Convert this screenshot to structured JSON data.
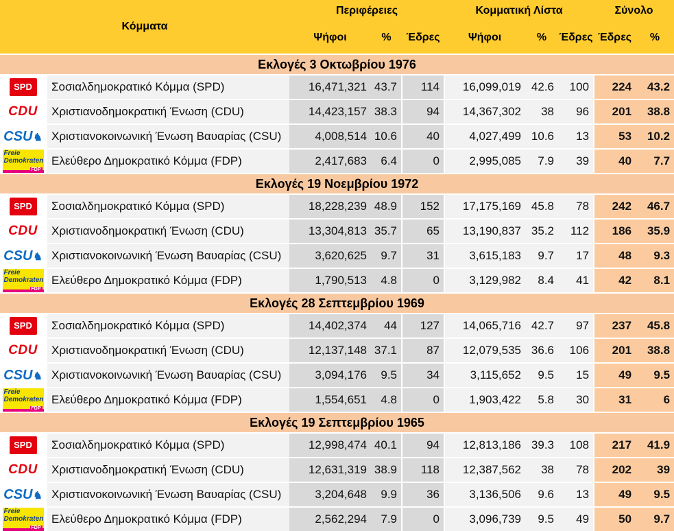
{
  "header": {
    "parties": "Κόμματα",
    "regions": "Περιφέρειες",
    "list": "Κομματική Λίστα",
    "total": "Σύνολο",
    "votes": "Ψήφοι",
    "pct": "%",
    "seats": "Έδρες"
  },
  "parties": {
    "spd": {
      "name": "Σοσιαλδημοκρατικό Κόμμα (SPD)",
      "logo_text": "SPD",
      "icon": "spd-logo",
      "color": "#e3000f"
    },
    "cdu": {
      "name": "Χριστιανοδημοκρατική Ένωση (CDU)",
      "logo_text": "CDU",
      "icon": "cdu-logo",
      "color": "#e3000f"
    },
    "csu": {
      "name": "Χριστιανοκοινωνική Ένωση Βαυαρίας (CSU)",
      "logo_text": "CSU",
      "icon": "csu-logo",
      "color": "#0f6cc4"
    },
    "fdp": {
      "name": "Ελεύθερο Δημοκρατικό Κόμμα (FDP)",
      "logo_line1": "Freie",
      "logo_line2": "Demokraten",
      "logo_line3": "FDP",
      "icon": "fdp-logo",
      "color": "#f8e500"
    }
  },
  "elections": [
    {
      "title": "Εκλογές 3 Οκτωβρίου 1976",
      "rows": [
        {
          "party": "spd",
          "r_votes": "16,471,321",
          "r_pct": "43.7",
          "r_seats": "114",
          "l_votes": "16,099,019",
          "l_pct": "42.6",
          "l_seats": "100",
          "t_seats": "224",
          "t_pct": "43.2"
        },
        {
          "party": "cdu",
          "r_votes": "14,423,157",
          "r_pct": "38.3",
          "r_seats": "94",
          "l_votes": "14,367,302",
          "l_pct": "38",
          "l_seats": "96",
          "t_seats": "201",
          "t_pct": "38.8"
        },
        {
          "party": "csu",
          "r_votes": "4,008,514",
          "r_pct": "10.6",
          "r_seats": "40",
          "l_votes": "4,027,499",
          "l_pct": "10.6",
          "l_seats": "13",
          "t_seats": "53",
          "t_pct": "10.2"
        },
        {
          "party": "fdp",
          "r_votes": "2,417,683",
          "r_pct": "6.4",
          "r_seats": "0",
          "l_votes": "2,995,085",
          "l_pct": "7.9",
          "l_seats": "39",
          "t_seats": "40",
          "t_pct": "7.7"
        }
      ]
    },
    {
      "title": "Εκλογές 19 Νοεμβρίου 1972",
      "rows": [
        {
          "party": "spd",
          "r_votes": "18,228,239",
          "r_pct": "48.9",
          "r_seats": "152",
          "l_votes": "17,175,169",
          "l_pct": "45.8",
          "l_seats": "78",
          "t_seats": "242",
          "t_pct": "46.7"
        },
        {
          "party": "cdu",
          "r_votes": "13,304,813",
          "r_pct": "35.7",
          "r_seats": "65",
          "l_votes": "13,190,837",
          "l_pct": "35.2",
          "l_seats": "112",
          "t_seats": "186",
          "t_pct": "35.9"
        },
        {
          "party": "csu",
          "r_votes": "3,620,625",
          "r_pct": "9.7",
          "r_seats": "31",
          "l_votes": "3,615,183",
          "l_pct": "9.7",
          "l_seats": "17",
          "t_seats": "48",
          "t_pct": "9.3"
        },
        {
          "party": "fdp",
          "r_votes": "1,790,513",
          "r_pct": "4.8",
          "r_seats": "0",
          "l_votes": "3,129,982",
          "l_pct": "8.4",
          "l_seats": "41",
          "t_seats": "42",
          "t_pct": "8.1"
        }
      ]
    },
    {
      "title": "Εκλογές 28 Σεπτεμβρίου 1969",
      "rows": [
        {
          "party": "spd",
          "r_votes": "14,402,374",
          "r_pct": "44",
          "r_seats": "127",
          "l_votes": "14,065,716",
          "l_pct": "42.7",
          "l_seats": "97",
          "t_seats": "237",
          "t_pct": "45.8"
        },
        {
          "party": "cdu",
          "r_votes": "12,137,148",
          "r_pct": "37.1",
          "r_seats": "87",
          "l_votes": "12,079,535",
          "l_pct": "36.6",
          "l_seats": "106",
          "t_seats": "201",
          "t_pct": "38.8"
        },
        {
          "party": "csu",
          "r_votes": "3,094,176",
          "r_pct": "9.5",
          "r_seats": "34",
          "l_votes": "3,115,652",
          "l_pct": "9.5",
          "l_seats": "15",
          "t_seats": "49",
          "t_pct": "9.5"
        },
        {
          "party": "fdp",
          "r_votes": "1,554,651",
          "r_pct": "4.8",
          "r_seats": "0",
          "l_votes": "1,903,422",
          "l_pct": "5.8",
          "l_seats": "30",
          "t_seats": "31",
          "t_pct": "6"
        }
      ]
    },
    {
      "title": "Εκλογές 19 Σεπτεμβρίου 1965",
      "rows": [
        {
          "party": "spd",
          "r_votes": "12,998,474",
          "r_pct": "40.1",
          "r_seats": "94",
          "l_votes": "12,813,186",
          "l_pct": "39.3",
          "l_seats": "108",
          "t_seats": "217",
          "t_pct": "41.9"
        },
        {
          "party": "cdu",
          "r_votes": "12,631,319",
          "r_pct": "38.9",
          "r_seats": "118",
          "l_votes": "12,387,562",
          "l_pct": "38",
          "l_seats": "78",
          "t_seats": "202",
          "t_pct": "39"
        },
        {
          "party": "csu",
          "r_votes": "3,204,648",
          "r_pct": "9.9",
          "r_seats": "36",
          "l_votes": "3,136,506",
          "l_pct": "9.6",
          "l_seats": "13",
          "t_seats": "49",
          "t_pct": "9.5"
        },
        {
          "party": "fdp",
          "r_votes": "2,562,294",
          "r_pct": "7.9",
          "r_seats": "0",
          "l_votes": "3,096,739",
          "l_pct": "9.5",
          "l_seats": "49",
          "t_seats": "50",
          "t_pct": "9.7"
        }
      ]
    }
  ]
}
